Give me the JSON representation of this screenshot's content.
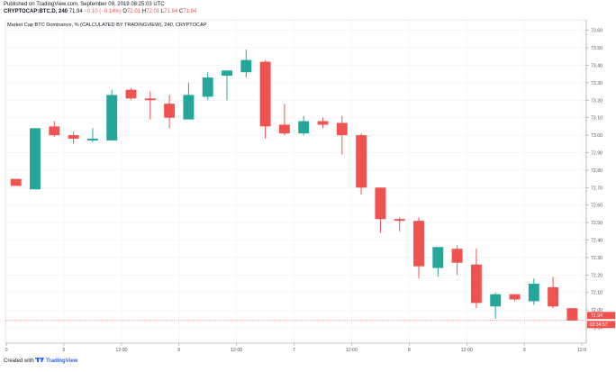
{
  "published": "Published on TradingView.com, September 09, 2019 08:25:03 UTC",
  "header": {
    "symbol": "CRYPTOCAP:BTC.D, 240",
    "last": "71.94",
    "change": "−0.10 (−0.14%)",
    "o_label": "O",
    "o_value": "72.01",
    "h_label": "H",
    "h_value": "72.01",
    "l_label": "L",
    "l_value": "71.94",
    "c_label": "C",
    "c_value": "71.94"
  },
  "footer": {
    "created_with": "Created with",
    "brand": "TradingView"
  },
  "colors": {
    "up": "#26a69a",
    "down": "#ef5350",
    "grid": "#eef0f3",
    "axis": "#555555",
    "price_line": "#ef5350"
  },
  "chart_data": {
    "type": "candlestick",
    "title": "Market Cap BTC Dominance, % (CALCULATED BY TRADINGVIEW), 240, CRYPTOCAP",
    "ylim": [
      71.81,
      73.66
    ],
    "yticks": [
      71.8,
      71.9,
      72.0,
      72.1,
      72.2,
      72.3,
      72.4,
      72.5,
      72.6,
      72.7,
      72.8,
      72.9,
      73.0,
      73.1,
      73.2,
      73.3,
      73.4,
      73.5,
      73.6
    ],
    "yticklabels": [
      "71.80",
      "71.90",
      "72.00",
      "72.10",
      "72.20",
      "72.30",
      "72.40",
      "72.50",
      "72.60",
      "72.70",
      "72.80",
      "72.90",
      "73.00",
      "73.10",
      "73.20",
      "73.30",
      "73.40",
      "73.50",
      "73.60"
    ],
    "xticks": [
      {
        "index": 0,
        "label": "0"
      },
      {
        "index": 3,
        "label": "5"
      },
      {
        "index": 6,
        "label": "12:00"
      },
      {
        "index": 9,
        "label": "6"
      },
      {
        "index": 12,
        "label": "12:00"
      },
      {
        "index": 15,
        "label": "7"
      },
      {
        "index": 18,
        "label": "12:00"
      },
      {
        "index": 21,
        "label": "8"
      },
      {
        "index": 24,
        "label": "12:00"
      },
      {
        "index": 27,
        "label": "9"
      },
      {
        "index": 30,
        "label": "12:0"
      }
    ],
    "candles": [
      {
        "o": 72.75,
        "h": 72.75,
        "l": 72.71,
        "c": 72.71
      },
      {
        "o": 72.69,
        "h": 73.04,
        "l": 72.69,
        "c": 73.04
      },
      {
        "o": 73.05,
        "h": 73.08,
        "l": 72.99,
        "c": 73.0
      },
      {
        "o": 73.0,
        "h": 73.02,
        "l": 72.95,
        "c": 72.98
      },
      {
        "o": 72.97,
        "h": 73.04,
        "l": 72.96,
        "c": 72.98
      },
      {
        "o": 72.97,
        "h": 73.26,
        "l": 72.97,
        "c": 73.23
      },
      {
        "o": 73.26,
        "h": 73.27,
        "l": 73.2,
        "c": 73.21
      },
      {
        "o": 73.21,
        "h": 73.25,
        "l": 73.09,
        "c": 73.2
      },
      {
        "o": 73.18,
        "h": 73.23,
        "l": 73.04,
        "c": 73.1
      },
      {
        "o": 73.09,
        "h": 73.3,
        "l": 73.09,
        "c": 73.23
      },
      {
        "o": 73.22,
        "h": 73.36,
        "l": 73.2,
        "c": 73.33
      },
      {
        "o": 73.34,
        "h": 73.37,
        "l": 73.2,
        "c": 73.37
      },
      {
        "o": 73.36,
        "h": 73.49,
        "l": 73.33,
        "c": 73.43
      },
      {
        "o": 73.42,
        "h": 73.43,
        "l": 72.98,
        "c": 73.05
      },
      {
        "o": 73.06,
        "h": 73.18,
        "l": 73.0,
        "c": 73.01
      },
      {
        "o": 73.01,
        "h": 73.11,
        "l": 73.0,
        "c": 73.08
      },
      {
        "o": 73.08,
        "h": 73.1,
        "l": 73.04,
        "c": 73.06
      },
      {
        "o": 73.07,
        "h": 73.11,
        "l": 72.89,
        "c": 73.0
      },
      {
        "o": 73.0,
        "h": 73.01,
        "l": 72.66,
        "c": 72.7
      },
      {
        "o": 72.7,
        "h": 72.7,
        "l": 72.44,
        "c": 72.52
      },
      {
        "o": 72.52,
        "h": 72.53,
        "l": 72.45,
        "c": 72.51
      },
      {
        "o": 72.51,
        "h": 72.53,
        "l": 72.18,
        "c": 72.25
      },
      {
        "o": 72.24,
        "h": 72.36,
        "l": 72.19,
        "c": 72.36
      },
      {
        "o": 72.35,
        "h": 72.37,
        "l": 72.2,
        "c": 72.27
      },
      {
        "o": 72.26,
        "h": 72.35,
        "l": 72.01,
        "c": 72.04
      },
      {
        "o": 72.02,
        "h": 72.1,
        "l": 71.95,
        "c": 72.09
      },
      {
        "o": 72.09,
        "h": 72.09,
        "l": 72.05,
        "c": 72.06
      },
      {
        "o": 72.05,
        "h": 72.18,
        "l": 72.03,
        "c": 72.15
      },
      {
        "o": 72.13,
        "h": 72.19,
        "l": 72.01,
        "c": 72.02
      },
      {
        "o": 72.01,
        "h": 72.01,
        "l": 71.94,
        "c": 71.94
      }
    ],
    "last_price_label": "71.94",
    "countdown_label": "03:34:57"
  }
}
